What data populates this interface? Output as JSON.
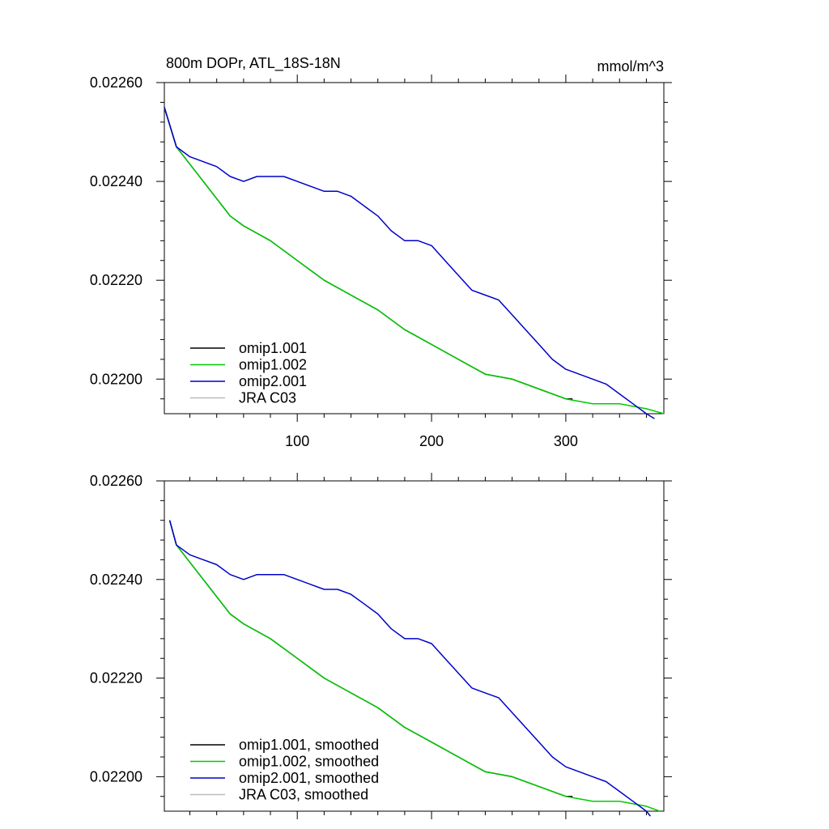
{
  "chart_data": [
    {
      "type": "line",
      "title": "800m DOPr, ATL_18S-18N",
      "units": "mmol/m^3",
      "xlim": [
        1,
        373
      ],
      "ylim": [
        0.02193,
        0.0226
      ],
      "x_ticks": [
        100,
        200,
        300
      ],
      "y_ticks": [
        0.0226,
        0.0224,
        0.0222,
        0.022
      ],
      "y_tick_labels": [
        "0.02260",
        "0.02240",
        "0.02220",
        "0.02200"
      ],
      "grid": false,
      "legend_position": "bottom-left",
      "series": [
        {
          "name": "omip1.001",
          "color": "#000000",
          "x": [
            1,
            10,
            30,
            50,
            60,
            80,
            100,
            120,
            140,
            160,
            180,
            200,
            220,
            240,
            260,
            280,
            300,
            305
          ],
          "y": [
            0.02255,
            0.02247,
            0.0224,
            0.02233,
            0.02231,
            0.02228,
            0.02224,
            0.0222,
            0.02217,
            0.02214,
            0.0221,
            0.02207,
            0.02204,
            0.02201,
            0.022,
            0.02198,
            0.02196,
            0.02196
          ]
        },
        {
          "name": "omip1.002",
          "color": "#00cc00",
          "x": [
            1,
            10,
            30,
            50,
            60,
            80,
            100,
            120,
            140,
            160,
            180,
            200,
            220,
            240,
            260,
            280,
            300,
            320,
            340,
            360,
            373
          ],
          "y": [
            0.02255,
            0.02247,
            0.0224,
            0.02233,
            0.02231,
            0.02228,
            0.02224,
            0.0222,
            0.02217,
            0.02214,
            0.0221,
            0.02207,
            0.02204,
            0.02201,
            0.022,
            0.02198,
            0.02196,
            0.02195,
            0.02195,
            0.02194,
            0.02193
          ]
        },
        {
          "name": "omip2.001",
          "color": "#0000cc",
          "x": [
            1,
            10,
            20,
            30,
            40,
            50,
            60,
            70,
            80,
            90,
            100,
            110,
            120,
            130,
            140,
            150,
            160,
            170,
            180,
            190,
            200,
            210,
            220,
            230,
            240,
            250,
            260,
            270,
            280,
            290,
            300,
            310,
            320,
            330,
            340,
            350,
            360,
            366
          ],
          "y": [
            0.02255,
            0.02247,
            0.02245,
            0.02244,
            0.02243,
            0.02241,
            0.0224,
            0.02241,
            0.02241,
            0.02241,
            0.0224,
            0.02239,
            0.02238,
            0.02238,
            0.02237,
            0.02235,
            0.02233,
            0.0223,
            0.02228,
            0.02228,
            0.02227,
            0.02224,
            0.02221,
            0.02218,
            0.02217,
            0.02216,
            0.02213,
            0.0221,
            0.02207,
            0.02204,
            0.02202,
            0.02201,
            0.022,
            0.02199,
            0.02197,
            0.02195,
            0.02193,
            0.02192
          ]
        },
        {
          "name": "JRA C03",
          "color": "#bbbbbb",
          "x": [],
          "y": []
        }
      ]
    },
    {
      "type": "line",
      "title": "",
      "units": "",
      "xlim": [
        1,
        373
      ],
      "ylim": [
        0.02193,
        0.0226
      ],
      "x_ticks": [
        100,
        200,
        300
      ],
      "y_ticks": [
        0.0226,
        0.0224,
        0.0222,
        0.022
      ],
      "y_tick_labels": [
        "0.02260",
        "0.02240",
        "0.02220",
        "0.02200"
      ],
      "grid": false,
      "legend_position": "bottom-left",
      "series": [
        {
          "name": "omip1.001, smoothed",
          "color": "#000000",
          "x": [
            5,
            10,
            30,
            50,
            60,
            80,
            100,
            120,
            140,
            160,
            180,
            200,
            220,
            240,
            260,
            280,
            300,
            305
          ],
          "y": [
            0.02252,
            0.02247,
            0.0224,
            0.02233,
            0.02231,
            0.02228,
            0.02224,
            0.0222,
            0.02217,
            0.02214,
            0.0221,
            0.02207,
            0.02204,
            0.02201,
            0.022,
            0.02198,
            0.02196,
            0.02196
          ]
        },
        {
          "name": "omip1.002, smoothed",
          "color": "#00cc00",
          "x": [
            5,
            10,
            30,
            50,
            60,
            80,
            100,
            120,
            140,
            160,
            180,
            200,
            220,
            240,
            260,
            280,
            300,
            320,
            340,
            360,
            370
          ],
          "y": [
            0.02252,
            0.02247,
            0.0224,
            0.02233,
            0.02231,
            0.02228,
            0.02224,
            0.0222,
            0.02217,
            0.02214,
            0.0221,
            0.02207,
            0.02204,
            0.02201,
            0.022,
            0.02198,
            0.02196,
            0.02195,
            0.02195,
            0.02194,
            0.02193
          ]
        },
        {
          "name": "omip2.001, smoothed",
          "color": "#0000cc",
          "x": [
            5,
            10,
            20,
            30,
            40,
            50,
            60,
            70,
            80,
            90,
            100,
            110,
            120,
            130,
            140,
            150,
            160,
            170,
            180,
            190,
            200,
            210,
            220,
            230,
            240,
            250,
            260,
            270,
            280,
            290,
            300,
            310,
            320,
            330,
            340,
            350,
            360,
            363
          ],
          "y": [
            0.02252,
            0.02247,
            0.02245,
            0.02244,
            0.02243,
            0.02241,
            0.0224,
            0.02241,
            0.02241,
            0.02241,
            0.0224,
            0.02239,
            0.02238,
            0.02238,
            0.02237,
            0.02235,
            0.02233,
            0.0223,
            0.02228,
            0.02228,
            0.02227,
            0.02224,
            0.02221,
            0.02218,
            0.02217,
            0.02216,
            0.02213,
            0.0221,
            0.02207,
            0.02204,
            0.02202,
            0.02201,
            0.022,
            0.02199,
            0.02197,
            0.02195,
            0.02193,
            0.02192
          ]
        },
        {
          "name": "JRA C03, smoothed",
          "color": "#bbbbbb",
          "x": [],
          "y": []
        }
      ]
    }
  ]
}
